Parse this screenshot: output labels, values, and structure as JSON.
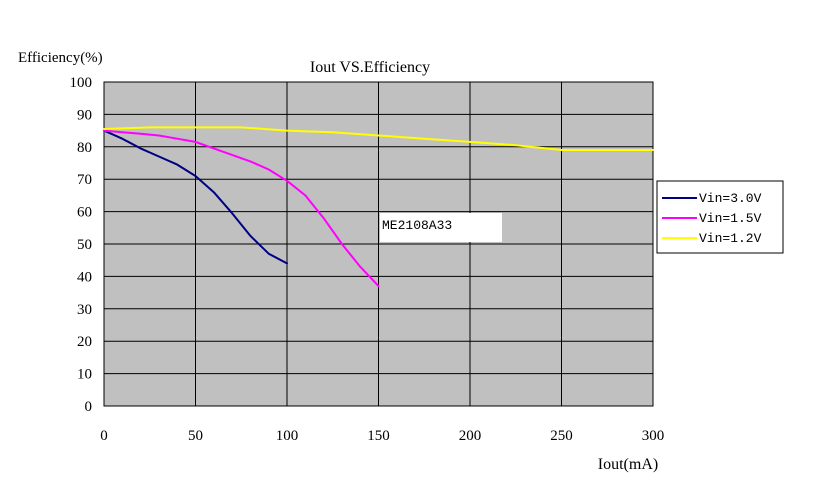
{
  "chart_data": {
    "type": "line",
    "title": "Iout VS.Efficiency",
    "ylabel": "Efficiency(%)",
    "xlabel": "Iout(mA)",
    "xlim": [
      0,
      300
    ],
    "ylim": [
      0,
      100
    ],
    "x_ticks": [
      "0",
      "50",
      "100",
      "150",
      "200",
      "250",
      "300"
    ],
    "y_ticks": [
      "0",
      "10",
      "20",
      "30",
      "40",
      "50",
      "60",
      "70",
      "80",
      "90",
      "100"
    ],
    "grid": true,
    "plot_background": "#c0c0c0",
    "legend_position": "right",
    "annotation": "ME2108A33",
    "series": [
      {
        "name": "Vin=3.0V",
        "color": "#000080",
        "x": [
          0,
          10,
          20,
          30,
          40,
          50,
          60,
          70,
          80,
          90,
          100
        ],
        "y": [
          85,
          82.5,
          79.5,
          77,
          74.5,
          71,
          66,
          59.5,
          52.5,
          47,
          44
        ]
      },
      {
        "name": "Vin=1.5V",
        "color": "#ff00ff",
        "x": [
          0,
          10,
          20,
          30,
          40,
          50,
          60,
          70,
          80,
          90,
          100,
          110,
          120,
          130,
          140,
          150
        ],
        "y": [
          85,
          84.5,
          84,
          83.5,
          82.5,
          81.5,
          79.5,
          77.5,
          75.5,
          73,
          69.5,
          65,
          58,
          50,
          43,
          37
        ]
      },
      {
        "name": "Vin=1.2V",
        "color": "#ffff00",
        "x": [
          0,
          25,
          50,
          75,
          100,
          125,
          150,
          175,
          200,
          225,
          250,
          275,
          300
        ],
        "y": [
          85.5,
          86,
          86,
          86,
          85,
          84.5,
          83.5,
          82.5,
          81.5,
          80.5,
          79,
          79,
          79
        ]
      }
    ]
  }
}
